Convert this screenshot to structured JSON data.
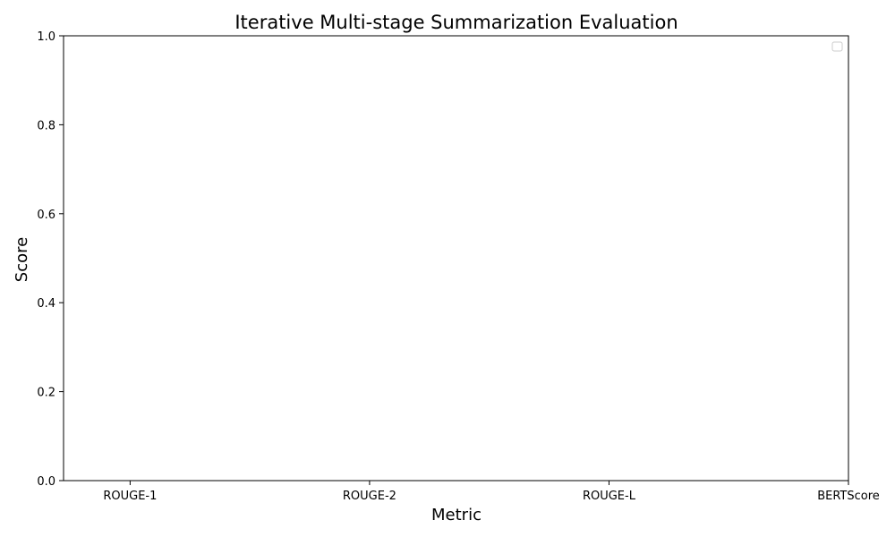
{
  "chart_data": {
    "type": "line",
    "title": "Iterative Multi-stage Summarization Evaluation",
    "xlabel": "Metric",
    "ylabel": "Score",
    "categories": [
      "ROUGE-1",
      "ROUGE-2",
      "ROUGE-L",
      "BERTScore"
    ],
    "ylim": [
      0,
      1
    ],
    "yticks": [
      "0.0",
      "0.2",
      "0.4",
      "0.6",
      "0.8",
      "1.0"
    ],
    "series": [],
    "grid": false,
    "legend": "top-right"
  }
}
